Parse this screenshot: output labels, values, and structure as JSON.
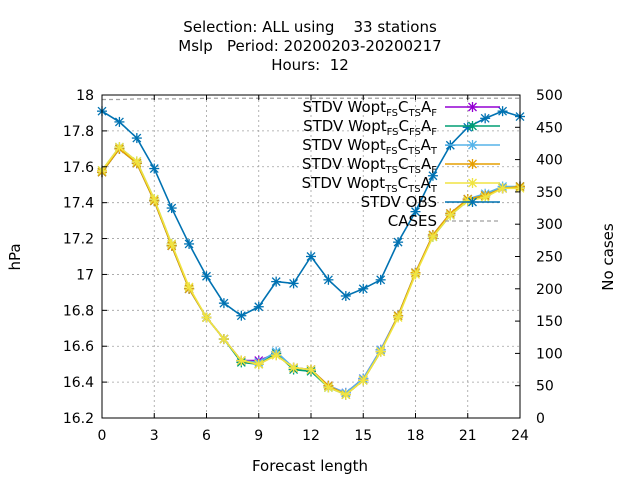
{
  "title": {
    "line1": "Selection: ALL using    33 stations",
    "line2": "Mslp   Period: 20200203-20200217",
    "line3": "Hours:  12"
  },
  "chart_data": {
    "type": "line",
    "xlabel": "Forecast length",
    "ylabel": "hPa",
    "y2label": "No cases",
    "xlim": [
      0,
      24
    ],
    "ylim": [
      16.2,
      18
    ],
    "y2lim": [
      0,
      500
    ],
    "xticks": [
      0,
      3,
      6,
      9,
      12,
      15,
      18,
      21,
      24
    ],
    "yticks": [
      16.2,
      16.4,
      16.6,
      16.8,
      17,
      17.2,
      17.4,
      17.6,
      17.8,
      18
    ],
    "ytick_labels": [
      "16.2",
      "16.4",
      "16.6",
      "16.8",
      "17",
      "17.2",
      "17.4",
      "17.6",
      "17.8",
      "18"
    ],
    "y2ticks": [
      0,
      50,
      100,
      150,
      200,
      250,
      300,
      350,
      400,
      450,
      500
    ],
    "grid": true,
    "legend_position": "top-right",
    "x": [
      0,
      1,
      2,
      3,
      4,
      5,
      6,
      7,
      8,
      9,
      10,
      11,
      12,
      13,
      14,
      15,
      16,
      17,
      18,
      19,
      20,
      21,
      22,
      23,
      24
    ],
    "series": [
      {
        "name": "STDV Wopt_{FS}C_{TS}A_{F}",
        "legend_parts": [
          [
            "STDV Wopt",
            ""
          ],
          [
            "FS",
            "sub"
          ],
          [
            "C",
            ""
          ],
          [
            "TS",
            "sub"
          ],
          [
            "A",
            ""
          ],
          [
            "F",
            "sub"
          ]
        ],
        "color": "#9400d3",
        "marker": "asterisk",
        "values": [
          17.57,
          17.7,
          17.62,
          17.41,
          17.16,
          16.92,
          16.76,
          16.64,
          16.52,
          16.52,
          16.56,
          16.48,
          16.47,
          16.38,
          16.34,
          16.42,
          16.58,
          16.77,
          17.01,
          17.22,
          17.34,
          17.42,
          17.44,
          17.48,
          17.49
        ]
      },
      {
        "name": "STDV Wopt_{FS}C_{FS}A_{F}",
        "legend_parts": [
          [
            "STDV Wopt",
            ""
          ],
          [
            "FS",
            "sub"
          ],
          [
            "C",
            ""
          ],
          [
            "FS",
            "sub"
          ],
          [
            "A",
            ""
          ],
          [
            "F",
            "sub"
          ]
        ],
        "color": "#009e73",
        "marker": "asterisk",
        "values": [
          17.57,
          17.7,
          17.62,
          17.41,
          17.16,
          16.92,
          16.76,
          16.64,
          16.51,
          16.5,
          16.56,
          16.47,
          16.46,
          16.37,
          16.33,
          16.41,
          16.57,
          16.77,
          17.01,
          17.21,
          17.33,
          17.41,
          17.44,
          17.48,
          17.49
        ]
      },
      {
        "name": "STDV Wopt_{FS}C_{TS}A_{T}",
        "legend_parts": [
          [
            "STDV Wopt",
            ""
          ],
          [
            "FS",
            "sub"
          ],
          [
            "C",
            ""
          ],
          [
            "TS",
            "sub"
          ],
          [
            "A",
            ""
          ],
          [
            "T",
            "sub"
          ]
        ],
        "color": "#56b4e9",
        "marker": "asterisk",
        "values": [
          17.58,
          17.71,
          17.63,
          17.42,
          17.17,
          16.92,
          16.76,
          16.64,
          16.52,
          16.51,
          16.57,
          16.48,
          16.47,
          16.38,
          16.34,
          16.42,
          16.58,
          16.77,
          17.01,
          17.22,
          17.34,
          17.42,
          17.45,
          17.49,
          17.49
        ]
      },
      {
        "name": "STDV Wopt_{TS}C_{TS}A_{F}",
        "legend_parts": [
          [
            "STDV Wopt",
            ""
          ],
          [
            "TS",
            "sub"
          ],
          [
            "C",
            ""
          ],
          [
            "TS",
            "sub"
          ],
          [
            "A",
            ""
          ],
          [
            "F",
            "sub"
          ]
        ],
        "color": "#e69f00",
        "marker": "asterisk",
        "values": [
          17.57,
          17.7,
          17.62,
          17.41,
          17.16,
          16.92,
          16.76,
          16.64,
          16.52,
          16.5,
          16.55,
          16.48,
          16.47,
          16.38,
          16.33,
          16.41,
          16.57,
          16.77,
          17.01,
          17.22,
          17.34,
          17.42,
          17.44,
          17.48,
          17.49
        ]
      },
      {
        "name": "STDV Wopt_{TS}C_{TS}A_{T}",
        "legend_parts": [
          [
            "STDV Wopt",
            ""
          ],
          [
            "TS",
            "sub"
          ],
          [
            "C",
            ""
          ],
          [
            "TS",
            "sub"
          ],
          [
            "A",
            ""
          ],
          [
            "T",
            "sub"
          ]
        ],
        "color": "#f0e442",
        "marker": "asterisk",
        "values": [
          17.58,
          17.71,
          17.63,
          17.42,
          17.17,
          16.93,
          16.76,
          16.64,
          16.52,
          16.5,
          16.55,
          16.48,
          16.47,
          16.37,
          16.33,
          16.41,
          16.57,
          16.76,
          17.0,
          17.21,
          17.33,
          17.41,
          17.43,
          17.48,
          17.48
        ]
      },
      {
        "name": "STDV OBS",
        "legend_parts": [
          [
            "STDV OBS",
            ""
          ]
        ],
        "color": "#0072b2",
        "marker": "asterisk",
        "values": [
          17.91,
          17.85,
          17.76,
          17.59,
          17.37,
          17.17,
          16.99,
          16.84,
          16.77,
          16.82,
          16.96,
          16.95,
          17.1,
          16.97,
          16.88,
          16.92,
          16.97,
          17.18,
          17.35,
          17.55,
          17.72,
          17.82,
          17.87,
          17.91,
          17.88
        ]
      },
      {
        "name": "CASES",
        "legend_parts": [
          [
            "CASES",
            ""
          ]
        ],
        "color": "#a0a0a0",
        "dashed": true,
        "axis": "y2",
        "values": [
          493,
          493,
          494,
          494,
          494,
          494,
          495,
          495,
          495,
          495,
          495,
          495,
          495,
          495,
          495,
          495,
          495,
          495,
          495,
          495,
          495,
          495,
          495,
          495,
          495
        ]
      }
    ]
  }
}
